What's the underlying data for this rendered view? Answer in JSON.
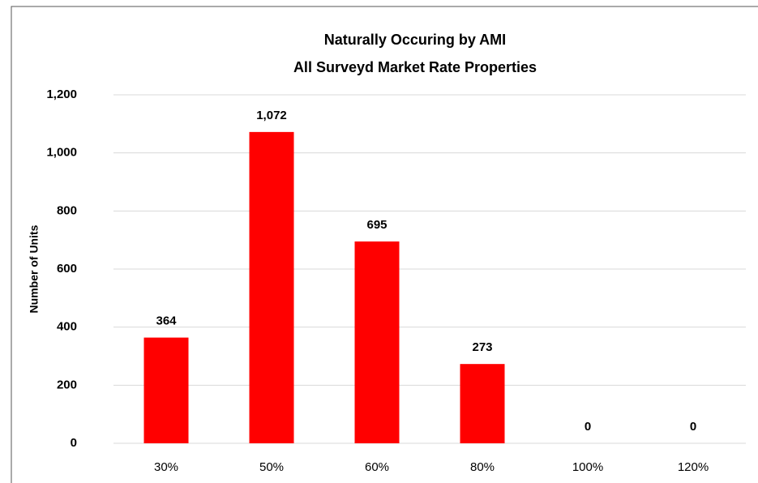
{
  "chart_data": {
    "type": "bar",
    "title": "Naturally Occuring by AMI",
    "subtitle": "All Surveyd Market Rate Properties",
    "y_label": "Number of Units",
    "categories": [
      "30%",
      "50%",
      "60%",
      "80%",
      "100%",
      "120%"
    ],
    "values": [
      364,
      1072,
      695,
      273,
      0,
      0
    ],
    "value_labels": [
      "364",
      "1,072",
      "695",
      "273",
      "0",
      "0"
    ],
    "color": "#ff0000",
    "ylim": [
      0,
      1200
    ],
    "yticks": [
      0,
      200,
      400,
      600,
      800,
      {
        "value": 1000,
        "label": "1,000"
      },
      {
        "value": 1200,
        "label": "1,200"
      }
    ],
    "grid": true
  }
}
